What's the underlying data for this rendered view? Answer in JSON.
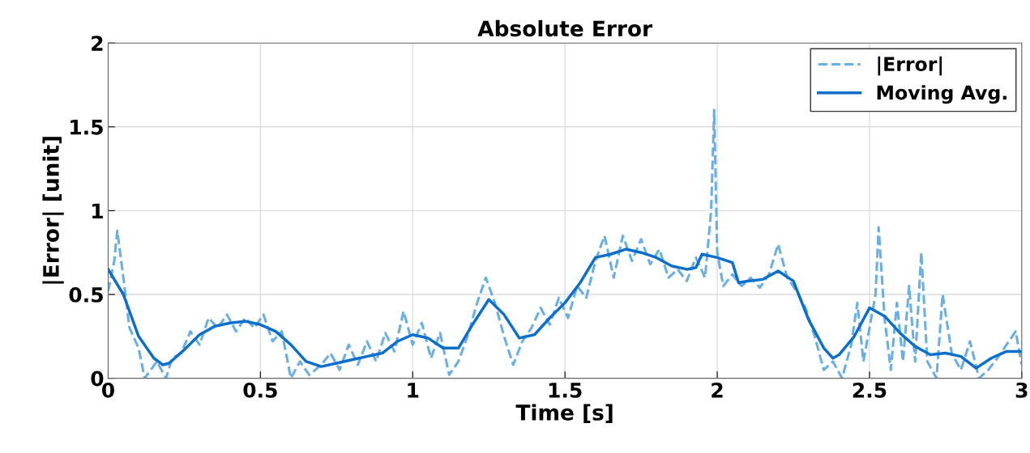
{
  "chart_data": {
    "type": "line",
    "title": "Absolute Error",
    "xlabel": "Time [s]",
    "ylabel": "|Error| [unit]",
    "xlim": [
      0,
      3
    ],
    "ylim": [
      0,
      2
    ],
    "xticks": [
      0,
      0.5,
      1,
      1.5,
      2,
      2.5,
      3
    ],
    "yticks": [
      0,
      0.5,
      1,
      1.5,
      2
    ],
    "grid": true,
    "legend": "top right",
    "series": [
      {
        "name": "|Error|",
        "color": "#6aaee6",
        "line_style": "dashed",
        "x": [
          0,
          0.02,
          0.03,
          0.05,
          0.07,
          0.1,
          0.12,
          0.14,
          0.16,
          0.19,
          0.21,
          0.24,
          0.27,
          0.3,
          0.33,
          0.36,
          0.39,
          0.42,
          0.45,
          0.48,
          0.51,
          0.54,
          0.57,
          0.6,
          0.63,
          0.66,
          0.7,
          0.73,
          0.76,
          0.79,
          0.82,
          0.85,
          0.88,
          0.91,
          0.94,
          0.97,
          1.0,
          1.03,
          1.06,
          1.09,
          1.12,
          1.15,
          1.18,
          1.21,
          1.24,
          1.27,
          1.3,
          1.33,
          1.36,
          1.39,
          1.42,
          1.45,
          1.48,
          1.51,
          1.54,
          1.57,
          1.6,
          1.63,
          1.66,
          1.69,
          1.72,
          1.75,
          1.78,
          1.81,
          1.84,
          1.87,
          1.9,
          1.93,
          1.96,
          1.98,
          1.99,
          2.0,
          2.02,
          2.05,
          2.08,
          2.11,
          2.14,
          2.17,
          2.2,
          2.23,
          2.26,
          2.29,
          2.32,
          2.35,
          2.38,
          2.41,
          2.44,
          2.46,
          2.48,
          2.5,
          2.52,
          2.53,
          2.55,
          2.57,
          2.59,
          2.61,
          2.63,
          2.65,
          2.67,
          2.69,
          2.72,
          2.74,
          2.77,
          2.8,
          2.83,
          2.86,
          2.89,
          2.92,
          2.95,
          2.98,
          3.0
        ],
        "values": [
          0.52,
          0.7,
          0.88,
          0.6,
          0.3,
          0.18,
          0.0,
          0.05,
          0.1,
          0.0,
          0.12,
          0.15,
          0.28,
          0.2,
          0.36,
          0.3,
          0.38,
          0.28,
          0.36,
          0.3,
          0.38,
          0.22,
          0.28,
          0.0,
          0.1,
          0.02,
          0.08,
          0.15,
          0.05,
          0.2,
          0.08,
          0.22,
          0.1,
          0.27,
          0.16,
          0.4,
          0.2,
          0.33,
          0.12,
          0.27,
          0.02,
          0.1,
          0.25,
          0.44,
          0.6,
          0.45,
          0.25,
          0.08,
          0.22,
          0.3,
          0.42,
          0.32,
          0.48,
          0.36,
          0.55,
          0.48,
          0.7,
          0.85,
          0.6,
          0.85,
          0.7,
          0.83,
          0.68,
          0.77,
          0.6,
          0.65,
          0.58,
          0.72,
          0.6,
          1.0,
          1.6,
          0.75,
          0.55,
          0.62,
          0.55,
          0.6,
          0.54,
          0.62,
          0.8,
          0.6,
          0.52,
          0.42,
          0.25,
          0.05,
          0.1,
          0.0,
          0.2,
          0.45,
          0.1,
          0.3,
          0.5,
          0.9,
          0.35,
          0.05,
          0.45,
          0.1,
          0.55,
          0.1,
          0.75,
          0.1,
          0.0,
          0.5,
          0.15,
          0.05,
          0.22,
          0.0,
          0.05,
          0.12,
          0.2,
          0.28,
          0.08
        ]
      },
      {
        "name": "Moving Avg.",
        "color": "#0a6fcc",
        "line_style": "solid",
        "x": [
          0,
          0.05,
          0.1,
          0.15,
          0.18,
          0.2,
          0.25,
          0.3,
          0.35,
          0.4,
          0.45,
          0.5,
          0.55,
          0.6,
          0.65,
          0.7,
          0.75,
          0.8,
          0.85,
          0.9,
          0.95,
          1.0,
          1.05,
          1.1,
          1.15,
          1.2,
          1.25,
          1.3,
          1.35,
          1.4,
          1.45,
          1.5,
          1.55,
          1.6,
          1.65,
          1.7,
          1.75,
          1.8,
          1.85,
          1.9,
          1.93,
          1.95,
          2.0,
          2.05,
          2.07,
          2.1,
          2.15,
          2.2,
          2.25,
          2.3,
          2.35,
          2.38,
          2.4,
          2.45,
          2.5,
          2.55,
          2.6,
          2.65,
          2.7,
          2.75,
          2.8,
          2.85,
          2.9,
          2.95,
          3.0
        ],
        "values": [
          0.65,
          0.5,
          0.25,
          0.12,
          0.08,
          0.09,
          0.17,
          0.26,
          0.31,
          0.33,
          0.34,
          0.32,
          0.28,
          0.2,
          0.1,
          0.07,
          0.09,
          0.11,
          0.13,
          0.15,
          0.22,
          0.26,
          0.24,
          0.18,
          0.18,
          0.33,
          0.47,
          0.38,
          0.24,
          0.26,
          0.36,
          0.45,
          0.57,
          0.72,
          0.74,
          0.77,
          0.75,
          0.72,
          0.67,
          0.65,
          0.66,
          0.74,
          0.72,
          0.69,
          0.57,
          0.58,
          0.59,
          0.64,
          0.58,
          0.35,
          0.18,
          0.12,
          0.14,
          0.25,
          0.42,
          0.37,
          0.27,
          0.19,
          0.14,
          0.15,
          0.13,
          0.06,
          0.12,
          0.16,
          0.16
        ]
      }
    ]
  }
}
